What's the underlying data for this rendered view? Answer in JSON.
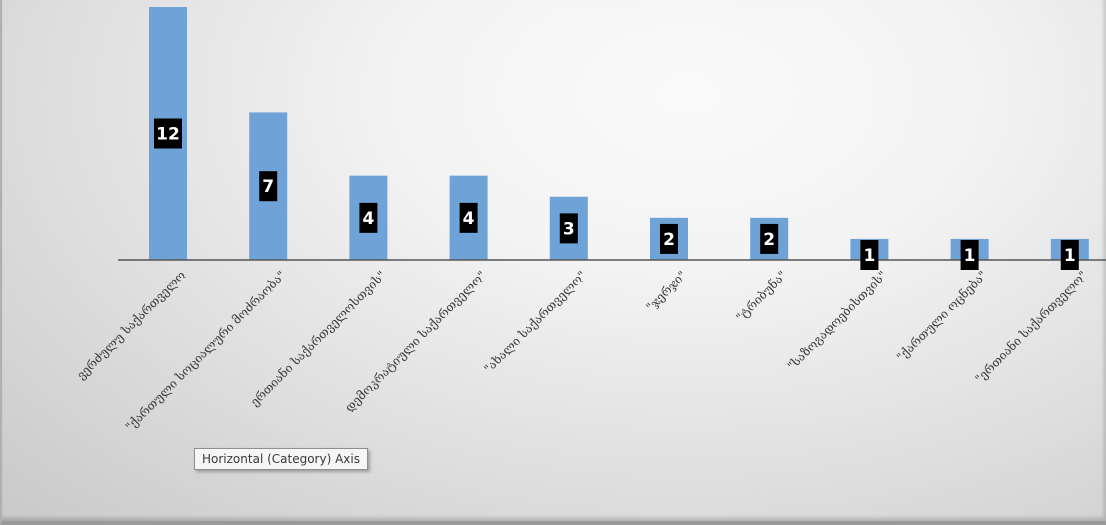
{
  "chart_data": {
    "type": "bar",
    "categories": [
      "ვერძულუ საქართველო",
      "\"ქართული სოციალური მოძრაობა\"",
      "ერთიანი საქართველოსთვის\"",
      "დემოკრატიული საქართველო\"",
      "\"ახალი საქართველო\"",
      "\"ჯერჯი\"",
      "\"ტრიბუნა\"",
      "\"საზოგადოებისთვის\"",
      "\"ქართული ოცნება\"",
      "\"ერთიანი საქართველო\""
    ],
    "values": [
      12,
      7,
      4,
      4,
      3,
      2,
      2,
      1,
      1,
      1
    ],
    "data_labels": [
      "12",
      "7",
      "4",
      "4",
      "3",
      "2",
      "2",
      "1",
      "1",
      "1"
    ],
    "ylim": [
      0,
      12
    ],
    "grid": false,
    "legend": "none",
    "colors": {
      "bar": "#6fa3d8",
      "label_box": "#000000",
      "label_text": "#ffffff",
      "axis": "#555555"
    }
  },
  "tooltip": {
    "text": "Horizontal (Category) Axis"
  }
}
